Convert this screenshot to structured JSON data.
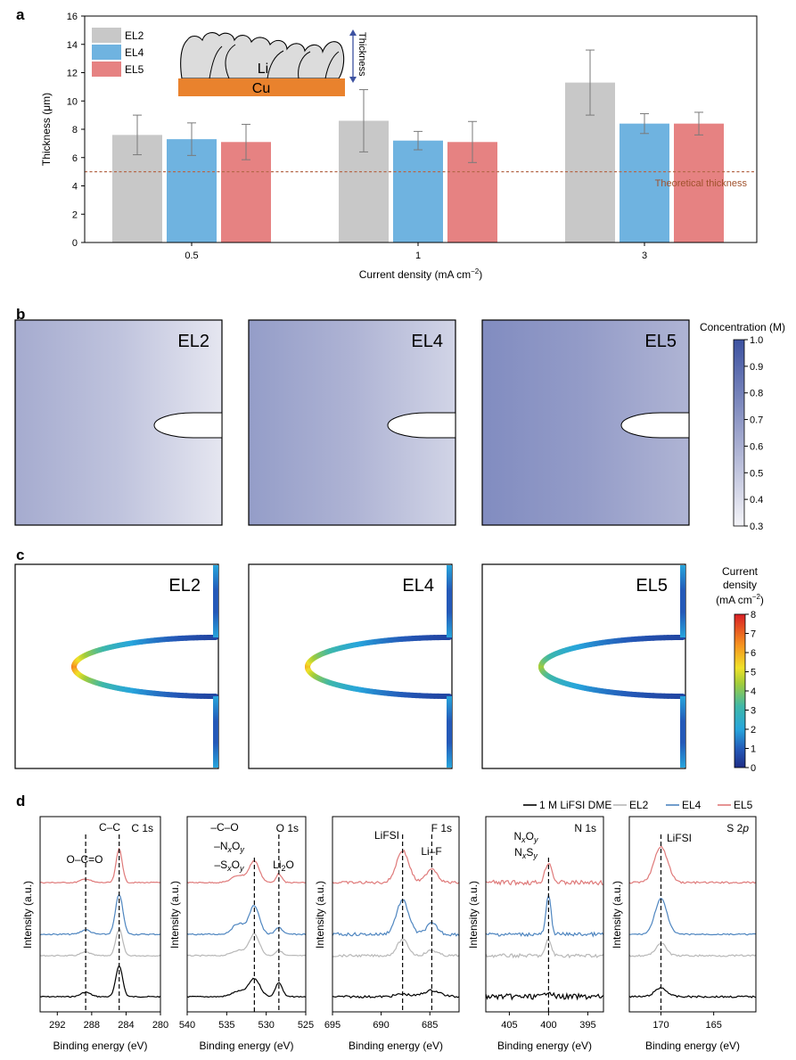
{
  "panel_labels": {
    "a": "a",
    "b": "b",
    "c": "c",
    "d": "d"
  },
  "colors": {
    "EL2": "#c8c8c8",
    "EL4": "#6fb3e0",
    "EL5": "#e68282",
    "line_black": "#000000",
    "line_EL2": "#b8b8b8",
    "line_EL4": "#4f86c0",
    "line_EL5": "#df7a7a",
    "conc_high": "#3d52a1",
    "conc_low": "#f4f4f8",
    "theoretical": "#b5694a"
  },
  "chart_data": [
    {
      "id": "a",
      "type": "bar",
      "categories": [
        "0.5",
        "1",
        "3"
      ],
      "series": [
        {
          "name": "EL2",
          "values": [
            7.6,
            8.6,
            11.3
          ],
          "errors": [
            1.4,
            2.2,
            2.3
          ]
        },
        {
          "name": "EL4",
          "values": [
            7.3,
            7.2,
            8.4
          ],
          "errors": [
            1.15,
            0.65,
            0.7
          ]
        },
        {
          "name": "EL5",
          "values": [
            7.1,
            7.1,
            8.4
          ],
          "errors": [
            1.25,
            1.45,
            0.8
          ]
        }
      ],
      "xlabel": "Current density (mA cm−2)",
      "xlabel_main": "Current density (mA cm",
      "xlabel_sup": "−2",
      "xlabel_end": ")",
      "ylabel": "Thickness (μm)",
      "ylim": [
        0,
        16
      ],
      "yticks": [
        "0",
        "2",
        "4",
        "6",
        "8",
        "10",
        "12",
        "14",
        "16"
      ],
      "reference_line": {
        "value": 5,
        "label": "Theoretical thickness"
      },
      "inset": {
        "top_label": "Li",
        "bottom_label": "Cu",
        "arrow_label": "Thickness"
      },
      "legend": [
        "EL2",
        "EL4",
        "EL5"
      ]
    },
    {
      "id": "b",
      "type": "heatmap",
      "panels": [
        {
          "label": "EL2",
          "left_conc": 0.62,
          "right_conc": 0.36
        },
        {
          "label": "EL4",
          "left_conc": 0.68,
          "right_conc": 0.44
        },
        {
          "label": "EL5",
          "left_conc": 0.75,
          "right_conc": 0.58
        }
      ],
      "colorbar": {
        "title": "Concentration (M)",
        "range": [
          0.3,
          1.0
        ],
        "ticks": [
          "0.3",
          "0.4",
          "0.5",
          "0.6",
          "0.7",
          "0.8",
          "0.9",
          "1.0"
        ]
      }
    },
    {
      "id": "c",
      "type": "heatmap",
      "panels": [
        {
          "label": "EL2",
          "tip_current_density": 7.0
        },
        {
          "label": "EL4",
          "tip_current_density": 6.2
        },
        {
          "label": "EL5",
          "tip_current_density": 4.7
        }
      ],
      "colorbar": {
        "title_lines": [
          "Current",
          "density"
        ],
        "unit_main": "(mA cm",
        "unit_sup": "−2",
        "unit_end": ")",
        "range": [
          0,
          8
        ],
        "ticks": [
          "0",
          "1",
          "2",
          "3",
          "4",
          "5",
          "6",
          "7",
          "8"
        ]
      }
    },
    {
      "id": "d",
      "type": "line",
      "legend": [
        "1 M LiFSI DME",
        "EL2",
        "EL4",
        "EL5"
      ],
      "ylabel": "Intensity (a.u.)",
      "xlabel": "Binding energy (eV)",
      "subplots": [
        {
          "title": "C 1s",
          "xlim": [
            294,
            280
          ],
          "xticks": [
            "292",
            "288",
            "284",
            "280"
          ],
          "peaks": [
            {
              "x": 284.8,
              "label": "C–C"
            },
            {
              "x": 288.7,
              "label": "O–C=O"
            }
          ]
        },
        {
          "title": "O 1s",
          "xlim": [
            540,
            525
          ],
          "xticks": [
            "540",
            "535",
            "530",
            "525"
          ],
          "peaks": [
            {
              "x": 531.5,
              "label_lines": [
                "–C–O",
                "–NxOy",
                "–SxOy"
              ]
            },
            {
              "x": 528.4,
              "label": "Li2O"
            }
          ]
        },
        {
          "title": "F 1s",
          "xlim": [
            695,
            682
          ],
          "xticks": [
            "695",
            "690",
            "685"
          ],
          "peaks": [
            {
              "x": 687.8,
              "label": "LiFSI"
            },
            {
              "x": 684.8,
              "label": "Li–F"
            }
          ]
        },
        {
          "title": "N 1s",
          "xlim": [
            408,
            393
          ],
          "xticks": [
            "405",
            "400",
            "395"
          ],
          "peaks": [
            {
              "x": 400.0,
              "label_lines": [
                "NxOy",
                "NxSy"
              ]
            }
          ]
        },
        {
          "title": "S 2p",
          "xlim": [
            173,
            161
          ],
          "xticks": [
            "170",
            "165"
          ],
          "peaks": [
            {
              "x": 170.0,
              "label": "LiFSI"
            }
          ]
        }
      ]
    }
  ]
}
